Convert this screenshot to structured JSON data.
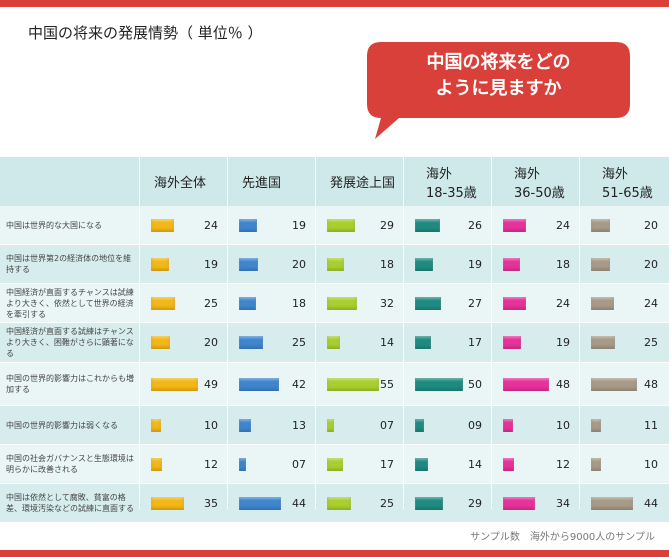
{
  "title": "中国の将来の発展情勢（ 単位％ ）",
  "callout": {
    "line1": "中国の将来をどの",
    "line2": "ように見ますか"
  },
  "footer": "サンプル数　海外から9000人のサンプル",
  "colors": {
    "accent_red": "#d9403a",
    "header_bg": "#cfe9ea",
    "row_light": "#eaf6f6",
    "row_dark": "#d7ecec",
    "series": [
      "#f3b716",
      "#3f86cf",
      "#a8cf2e",
      "#1f8b80",
      "#e6329a",
      "#a79a88"
    ]
  },
  "chart_data": {
    "type": "table",
    "title": "中国の将来の発展情勢（ 単位％ ）",
    "columns": [
      {
        "lines": [
          "海外全体"
        ]
      },
      {
        "lines": [
          "先進国"
        ]
      },
      {
        "lines": [
          "発展途上国"
        ]
      },
      {
        "lines": [
          "海外",
          "18-35歳"
        ]
      },
      {
        "lines": [
          "海外",
          "36-50歳"
        ]
      },
      {
        "lines": [
          "海外",
          "51-65歳"
        ]
      }
    ],
    "rows": [
      {
        "label": "中国は世界的な大国になる",
        "values": [
          "24",
          "19",
          "29",
          "26",
          "24",
          "20"
        ]
      },
      {
        "label": "中国は世界第2の経済体の地位を維持する",
        "values": [
          "19",
          "20",
          "18",
          "19",
          "18",
          "20"
        ]
      },
      {
        "label": "中国経済が直面するチャンスは試練より大きく、依然として世界の経済を牽引する",
        "values": [
          "25",
          "18",
          "32",
          "27",
          "24",
          "24"
        ]
      },
      {
        "label": "中国経済が直面する試練はチャンスより大きく、困難がさらに顕著になる",
        "values": [
          "20",
          "25",
          "14",
          "17",
          "19",
          "25"
        ]
      },
      {
        "label": "中国の世界的影響力はこれからも増加する",
        "values": [
          "49",
          "42",
          "55",
          "50",
          "48",
          "48"
        ]
      },
      {
        "label": "中国の世界的影響力は弱くなる",
        "values": [
          "10",
          "13",
          "07",
          "09",
          "10",
          "11"
        ]
      },
      {
        "label": "中国の社会ガバナンスと生態環境は明らかに改善される",
        "values": [
          "12",
          "07",
          "17",
          "14",
          "12",
          "10"
        ]
      },
      {
        "label": "中国は依然として腐敗、貧富の格差、環境汚染などの試練に直面する",
        "values": [
          "35",
          "44",
          "25",
          "29",
          "34",
          "44"
        ]
      }
    ]
  }
}
